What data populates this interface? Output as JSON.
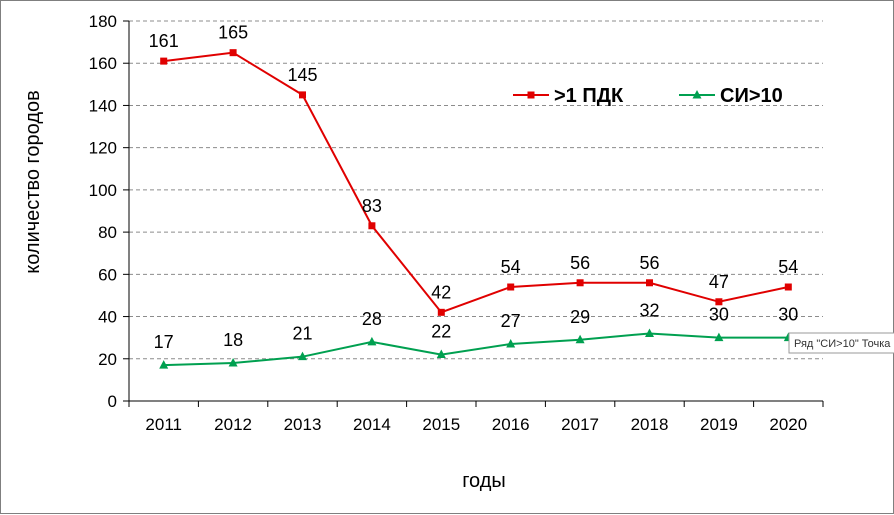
{
  "chart_data": {
    "type": "line",
    "categories": [
      "2011",
      "2012",
      "2013",
      "2014",
      "2015",
      "2016",
      "2017",
      "2018",
      "2019",
      "2020"
    ],
    "series": [
      {
        "name": ">1 ПДК",
        "color": "#e00000",
        "marker": "square",
        "values": [
          161,
          165,
          145,
          83,
          42,
          54,
          56,
          56,
          47,
          54
        ]
      },
      {
        "name": "СИ>10",
        "color": "#00a050",
        "marker": "triangle",
        "values": [
          17,
          18,
          21,
          28,
          22,
          27,
          29,
          32,
          30,
          30
        ]
      }
    ],
    "xlabel": "годы",
    "ylabel": "количество городов",
    "ylim": [
      0,
      180
    ],
    "yticks": [
      0,
      20,
      40,
      60,
      80,
      100,
      120,
      140,
      160,
      180
    ],
    "grid": "horizontal dashed",
    "legend_position": "top-right"
  },
  "tooltip": {
    "text": "Ряд \"СИ>10\" Точка"
  }
}
